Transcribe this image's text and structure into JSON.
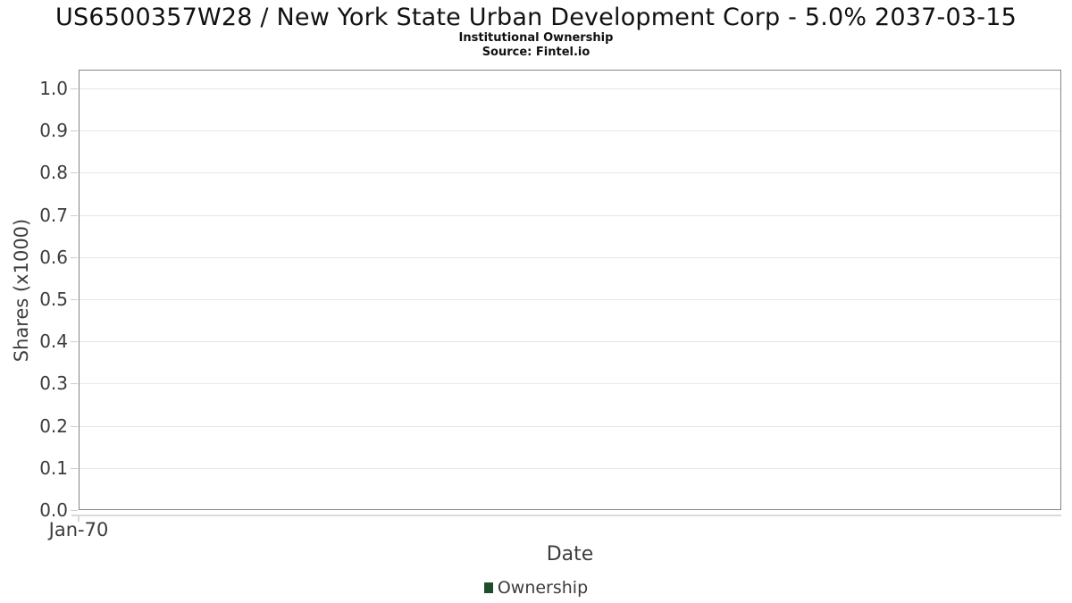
{
  "chart_data": {
    "type": "line",
    "title": "US6500357W28 / New York State Urban Development Corp - 5.0% 2037-03-15",
    "subtitle": "Institutional Ownership",
    "source": "Source: Fintel.io",
    "xlabel": "Date",
    "ylabel": "Shares (x1000)",
    "x_tick_labels": [
      "Jan-70"
    ],
    "y_tick_labels": [
      "0.0",
      "0.1",
      "0.2",
      "0.3",
      "0.4",
      "0.5",
      "0.6",
      "0.7",
      "0.8",
      "0.9",
      "1.0"
    ],
    "ylim": [
      0.0,
      1.0
    ],
    "grid": true,
    "legend": {
      "position": "bottom-center",
      "entries": [
        {
          "label": "Ownership",
          "marker": "square",
          "color": "#1f4d2a"
        }
      ]
    },
    "series": [
      {
        "name": "Ownership",
        "color": "#1f4d2a",
        "x": [],
        "values": []
      }
    ],
    "colors": {
      "grid": "#e7e7e7",
      "plot_border": "#858585",
      "axis_text": "#3c3c3c",
      "title_text": "#111111"
    }
  }
}
